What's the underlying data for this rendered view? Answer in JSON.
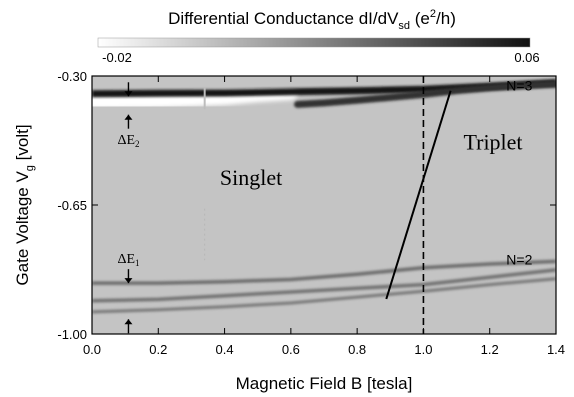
{
  "chart_data": {
    "type": "heatmap",
    "colorbar": {
      "title_main": "Differential Conductance dI/dV",
      "title_sub": "sd",
      "title_unit_open": " (e",
      "title_unit_sup": "2",
      "title_unit_close": "/h)",
      "min_label": "-0.02",
      "max_label": "0.06",
      "range": [
        -0.02,
        0.06
      ],
      "colors": [
        "#ffffff",
        "#111111"
      ]
    },
    "xlabel": "Magnetic Field B [tesla]",
    "ylabel_main": "Gate Voltage V",
    "ylabel_sub": "g",
    "ylabel_unit": " [volt]",
    "xlim": [
      0.0,
      1.4
    ],
    "ylim": [
      -1.0,
      -0.3
    ],
    "xticks": [
      {
        "value": 0.0,
        "label": "0.0"
      },
      {
        "value": 0.2,
        "label": "0.2"
      },
      {
        "value": 0.4,
        "label": "0.4"
      },
      {
        "value": 0.6,
        "label": "0.6"
      },
      {
        "value": 0.8,
        "label": "0.8"
      },
      {
        "value": 1.0,
        "label": "1.0"
      },
      {
        "value": 1.2,
        "label": "1.2"
      },
      {
        "value": 1.4,
        "label": "1.4"
      }
    ],
    "yticks": [
      {
        "value": -0.3,
        "label": "-0.30"
      },
      {
        "value": -0.65,
        "label": "-0.65"
      },
      {
        "value": -1.0,
        "label": "-1.00"
      }
    ],
    "background_value": 0.0,
    "features": {
      "n3_upper_dark": [
        [
          0.0,
          -0.348
        ],
        [
          0.2,
          -0.347
        ],
        [
          0.4,
          -0.346
        ],
        [
          0.6,
          -0.343
        ],
        [
          0.8,
          -0.34
        ],
        [
          1.0,
          -0.336
        ],
        [
          1.2,
          -0.328
        ],
        [
          1.4,
          -0.318
        ]
      ],
      "n3_lower_bright": [
        [
          0.0,
          -0.37
        ],
        [
          0.2,
          -0.367
        ],
        [
          0.4,
          -0.36
        ],
        [
          0.5,
          -0.352
        ],
        [
          0.6,
          -0.346
        ]
      ],
      "n3_triplet_dark": [
        [
          0.62,
          -0.377
        ],
        [
          0.7,
          -0.373
        ],
        [
          0.8,
          -0.366
        ],
        [
          0.9,
          -0.358
        ],
        [
          1.0,
          -0.35
        ],
        [
          1.1,
          -0.34
        ],
        [
          1.2,
          -0.332
        ],
        [
          1.3,
          -0.326
        ],
        [
          1.4,
          -0.322
        ]
      ],
      "n2_top": [
        [
          0.0,
          -0.862
        ],
        [
          0.2,
          -0.862
        ],
        [
          0.4,
          -0.858
        ],
        [
          0.6,
          -0.852
        ],
        [
          0.8,
          -0.838
        ],
        [
          1.0,
          -0.82
        ],
        [
          1.2,
          -0.81
        ],
        [
          1.4,
          -0.803
        ]
      ],
      "n2_mid": [
        [
          0.0,
          -0.91
        ],
        [
          0.2,
          -0.906
        ],
        [
          0.4,
          -0.896
        ],
        [
          0.6,
          -0.886
        ],
        [
          0.8,
          -0.876
        ],
        [
          1.0,
          -0.866
        ],
        [
          1.2,
          -0.846
        ],
        [
          1.4,
          -0.826
        ]
      ],
      "n2_low": [
        [
          0.0,
          -0.94
        ],
        [
          0.2,
          -0.934
        ],
        [
          0.4,
          -0.926
        ],
        [
          0.6,
          -0.916
        ],
        [
          0.8,
          -0.9
        ],
        [
          1.0,
          -0.884
        ],
        [
          1.2,
          -0.866
        ],
        [
          1.4,
          -0.85
        ]
      ]
    },
    "annotations": {
      "n3_label": {
        "text": "N=3",
        "x": 1.25,
        "y": -0.34
      },
      "n2_label": {
        "text": "N=2",
        "x": 1.25,
        "y": -0.812
      },
      "singlet_label": {
        "text": "Singlet",
        "x": 0.48,
        "y": -0.596
      },
      "triplet_label": {
        "text": "Triplet",
        "x": 1.21,
        "y": -0.5
      },
      "de2_main": "ΔE",
      "de2_sub": "2",
      "de1_main": "ΔE",
      "de1_sub": "1",
      "de_x": 0.11,
      "de2_arrow_top": -0.355,
      "de2_arrow_bottom": -0.405,
      "de2_label_y": -0.485,
      "de1_arrow_top": -0.862,
      "de1_arrow_bottom": -0.96,
      "de1_label_y": -0.808,
      "crossover_line_x": 1.0,
      "transition_line": [
        [
          0.888,
          -0.905
        ],
        [
          1.082,
          -0.34
        ]
      ]
    }
  }
}
